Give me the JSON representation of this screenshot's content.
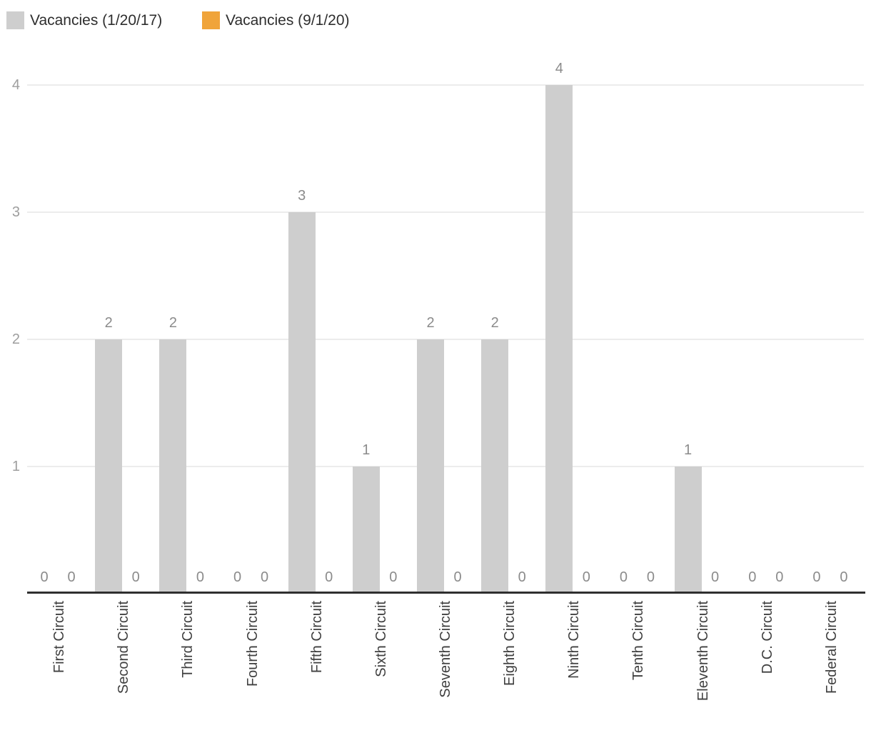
{
  "legend": [
    {
      "label": "Vacancies (1/20/17)",
      "color": "#cecece"
    },
    {
      "label": "Vacancies (9/1/20)",
      "color": "#f0a43a"
    }
  ],
  "chart_data": {
    "type": "bar",
    "title": "",
    "xlabel": "",
    "ylabel": "",
    "categories": [
      "First Circuit",
      "Second Circuit",
      "Third Circuit",
      "Fourth Circuit",
      "Fifth Circuit",
      "Sixth Circuit",
      "Seventh Circuit",
      "Eighth Circuit",
      "Ninth Circuit",
      "Tenth Circuit",
      "Eleventh Circuit",
      "D.C. Circuit",
      "Federal Circuit"
    ],
    "series": [
      {
        "name": "Vacancies (1/20/17)",
        "color": "#cecece",
        "values": [
          0,
          2,
          2,
          0,
          3,
          1,
          2,
          2,
          4,
          0,
          1,
          0,
          0
        ]
      },
      {
        "name": "Vacancies (9/1/20)",
        "color": "#f0a43a",
        "values": [
          0,
          0,
          0,
          0,
          0,
          0,
          0,
          0,
          0,
          0,
          0,
          0,
          0
        ]
      }
    ],
    "yticks": [
      1,
      2,
      3,
      4
    ],
    "ylim": [
      0,
      4.3
    ],
    "grid": true,
    "value_labels": true,
    "legend_position": "top-left",
    "colors": {
      "gridline": "#ececec",
      "axis_line": "#2f2f2f",
      "ytick_text": "#9e9e9e",
      "value_label_text": "#8b8b8b",
      "xlabel_text": "#3f3f3f",
      "legend_text": "#2e2e2e"
    }
  }
}
